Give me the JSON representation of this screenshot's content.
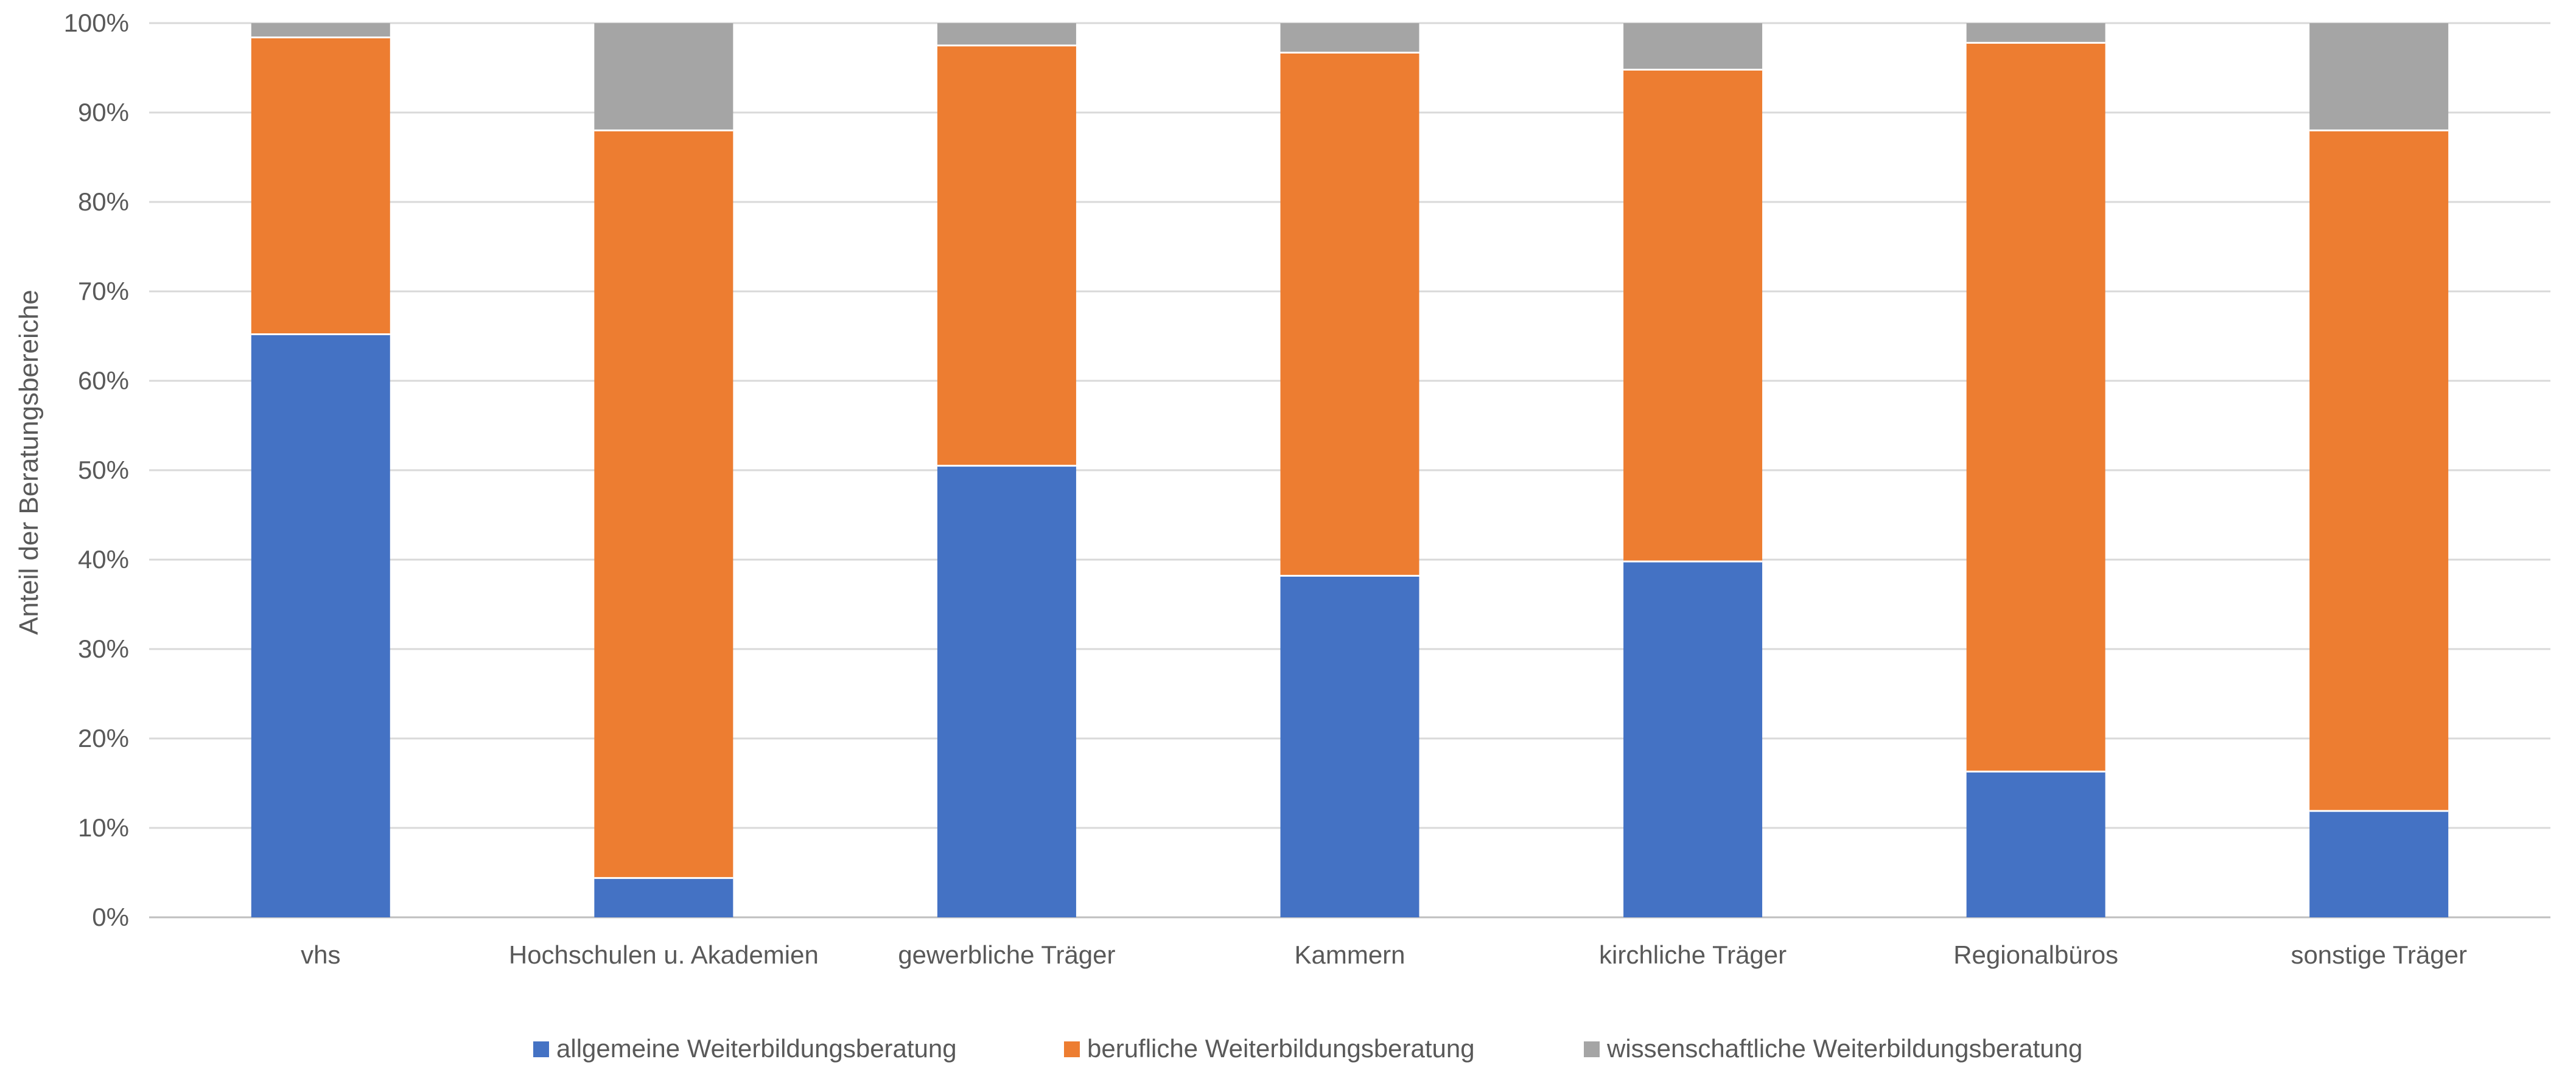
{
  "chart_data": {
    "type": "bar",
    "stacked": true,
    "percent_stacked": true,
    "title": "",
    "xlabel": "",
    "ylabel": "Anteil der Beratungsbereiche",
    "ylim": [
      0,
      100
    ],
    "yticks": [
      "0%",
      "10%",
      "20%",
      "30%",
      "40%",
      "50%",
      "60%",
      "70%",
      "80%",
      "90%",
      "100%"
    ],
    "grid": true,
    "legend_position": "bottom",
    "categories": [
      "vhs",
      "Hochschulen u. Akademien",
      "gewerbliche Träger",
      "Kammern",
      "kirchliche Träger",
      "Regionalbüros",
      "sonstige Träger"
    ],
    "series": [
      {
        "name": "allgemeine Weiterbildungsberatung",
        "color": "#4472C4",
        "values": [
          65.2,
          4.4,
          50.5,
          38.2,
          39.8,
          16.3,
          11.9
        ]
      },
      {
        "name": "berufliche Weiterbildungsberatung",
        "color": "#ED7D31",
        "values": [
          33.2,
          83.6,
          47.0,
          58.5,
          55.0,
          81.5,
          76.1
        ]
      },
      {
        "name": "wissenschaftliche Weiterbildungsberatung",
        "color": "#A5A5A5",
        "values": [
          1.6,
          12.0,
          2.5,
          3.3,
          5.2,
          2.2,
          12.0
        ]
      }
    ]
  }
}
